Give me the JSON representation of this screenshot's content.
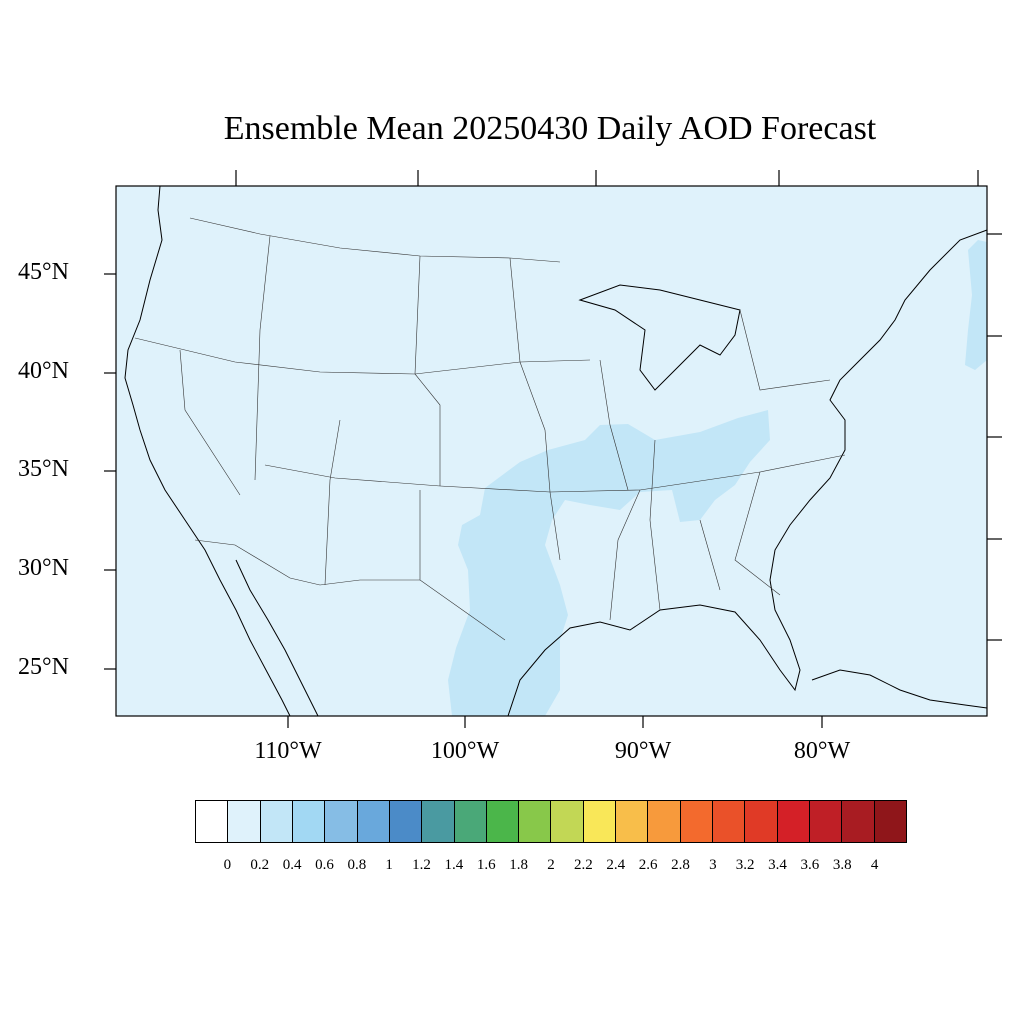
{
  "title": "Ensemble Mean 20250430 Daily AOD Forecast",
  "map": {
    "background_color": "#dff2fb",
    "plume_color": "#c2e6f7",
    "lat_labels": [
      "45°N",
      "40°N",
      "35°N",
      "30°N",
      "25°N"
    ],
    "lon_labels": [
      "110°W",
      "100°W",
      "90°W",
      "80°W"
    ]
  },
  "colorbar": {
    "colors": [
      "#ffffff",
      "#dff2fb",
      "#c2e6f7",
      "#a2d8f3",
      "#86bde5",
      "#69a8dc",
      "#4b8bc8",
      "#4a9aa1",
      "#4aa878",
      "#4bb64a",
      "#88c84a",
      "#c2d755",
      "#f9e758",
      "#f8be4a",
      "#f79a3c",
      "#f36a2d",
      "#ea5129",
      "#e03a26",
      "#d42027",
      "#bf1f26",
      "#a81c22",
      "#8f161a"
    ],
    "labels": [
      "0",
      "0.2",
      "0.4",
      "0.6",
      "0.8",
      "1",
      "1.2",
      "1.4",
      "1.6",
      "1.8",
      "2",
      "2.2",
      "2.4",
      "2.6",
      "2.8",
      "3",
      "3.2",
      "3.4",
      "3.6",
      "3.8",
      "4"
    ]
  }
}
